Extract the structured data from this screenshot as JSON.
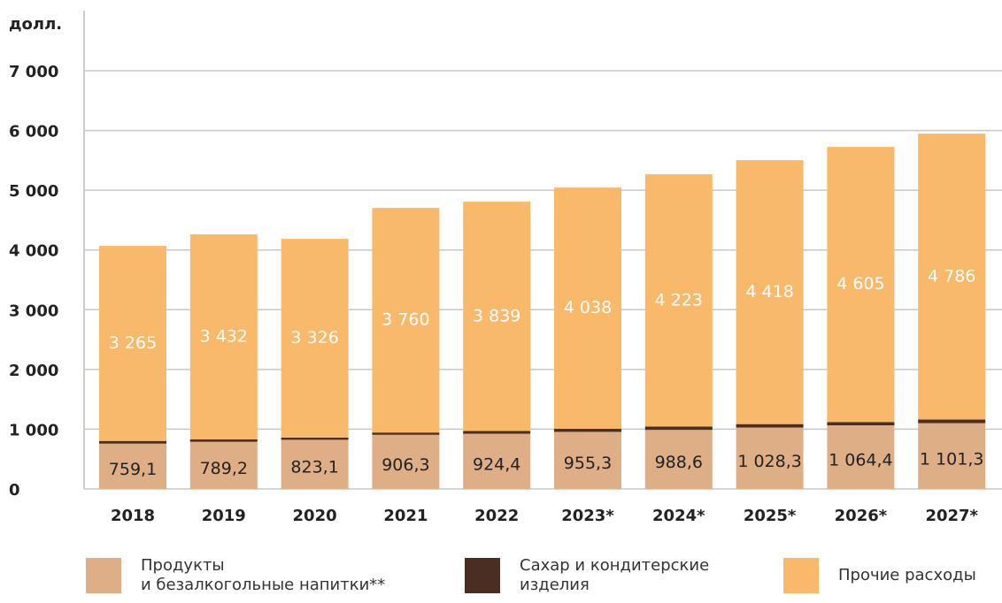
{
  "chart_data": {
    "type": "stacked_bar",
    "y_label": "долл.",
    "categories": [
      "2018",
      "2019",
      "2020",
      "2021",
      "2022",
      "2023*",
      "2024*",
      "2025*",
      "2026*",
      "2027*"
    ],
    "series": [
      {
        "name": "Продукты\nи безалкогольные напитки**",
        "color": "#deae86",
        "values": [
          759.1,
          789.2,
          823.1,
          906.3,
          924.4,
          955.3,
          988.6,
          1028.3,
          1064.4,
          1101.3
        ],
        "value_labels": [
          "759,1",
          "789,2",
          "823,1",
          "906,3",
          "924,4",
          "955,3",
          "988,6",
          "1 028,3",
          "1 064,4",
          "1 101,3"
        ]
      },
      {
        "name": "Сахар и кондитерские\nизделия",
        "color": "#4a2e22",
        "values": [
          44,
          40,
          37,
          38,
          45,
          51,
          55,
          57,
          56,
          60
        ]
      },
      {
        "name": "Прочие расходы",
        "color": "#f8b96a",
        "values": [
          3265,
          3432,
          3326,
          3760,
          3839,
          4038,
          4223,
          4418,
          4605,
          4786
        ],
        "value_labels": [
          "3 265",
          "3 432",
          "3 326",
          "3 760",
          "3 839",
          "4 038",
          "4 223",
          "4 418",
          "4 605",
          "4 786"
        ]
      }
    ],
    "ylim": [
      0,
      7000
    ],
    "yticks": [
      0,
      {
        "value": 1000,
        "label": "1 000"
      },
      {
        "value": 2000,
        "label": "2 000"
      },
      {
        "value": 3000,
        "label": "3 000"
      },
      {
        "value": 4000,
        "label": "4 000"
      },
      {
        "value": 5000,
        "label": "5 000"
      },
      {
        "value": 6000,
        "label": "6 000"
      },
      {
        "value": 7000,
        "label": "7 000"
      }
    ],
    "grid": true
  }
}
